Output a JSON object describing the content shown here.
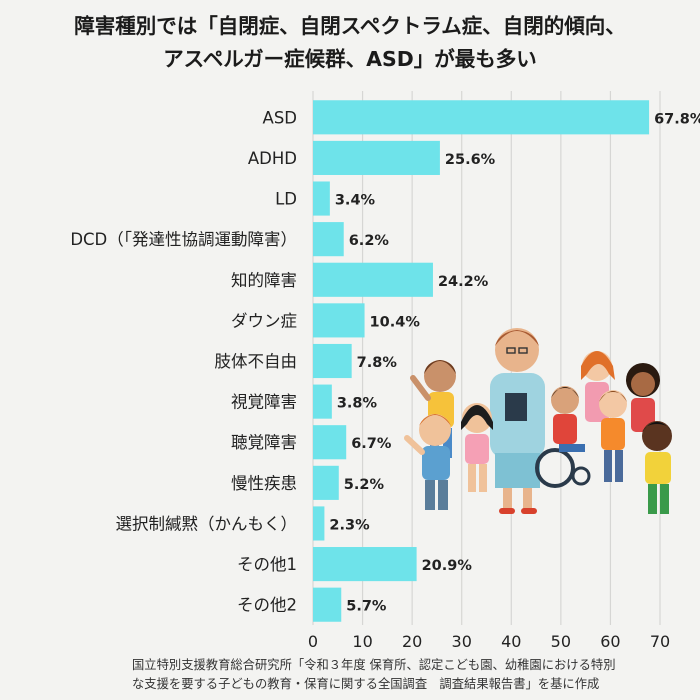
{
  "title_lines": [
    "障害種別では「自閉症、自閉スペクトラム症、自閉的傾向、",
    "アスペルガー症候群、ASD」が最も多い"
  ],
  "source_lines": [
    "国立特別支援教育総合研究所「令和３年度 保育所、認定こども園、幼稚園における特別",
    "な支援を要する子どもの教育・保育に関する全国調査　調査結果報告書」を基に作成"
  ],
  "chart_data": {
    "type": "bar",
    "orientation": "horizontal",
    "categories": [
      "ASD",
      "ADHD",
      "LD",
      "DCD（「発達性協調運動障害）",
      "知的障害",
      "ダウン症",
      "肢体不自由",
      "視覚障害",
      "聴覚障害",
      "慢性疾患",
      "選択制緘黙（かんもく）",
      "その他1",
      "その他2"
    ],
    "values": [
      67.8,
      25.6,
      3.4,
      6.2,
      24.2,
      10.4,
      7.8,
      3.8,
      6.7,
      5.2,
      2.3,
      20.9,
      5.7
    ],
    "value_labels": [
      "67.8%",
      "25.6%",
      "3.4%",
      "6.2%",
      "24.2%",
      "10.4%",
      "7.8%",
      "3.8%",
      "6.7%",
      "5.2%",
      "2.3%",
      "20.9%",
      "5.7%"
    ],
    "xlim": [
      0,
      70
    ],
    "xticks": [
      0,
      10,
      20,
      30,
      40,
      50,
      60,
      70
    ],
    "grid": "vertical",
    "bar_color": "#6ee3ea",
    "grid_color": "#d6d6d4"
  }
}
